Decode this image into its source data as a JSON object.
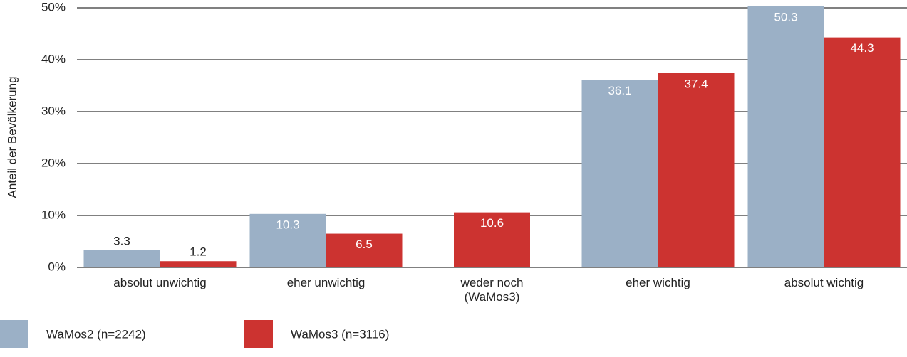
{
  "chart_data": {
    "type": "bar",
    "y_label": "Anteil der Bevölkerung",
    "categories": [
      "absolut unwichtig",
      "eher unwichtig",
      "weder noch\n(WaMos3)",
      "eher wichtig",
      "absolut wichtig"
    ],
    "series": [
      {
        "name": "WaMos2 (n=2242)",
        "color": "#9bb0c6",
        "values": [
          3.3,
          10.3,
          null,
          36.1,
          50.3
        ]
      },
      {
        "name": "WaMos3 (n=3116)",
        "color": "#cc3330",
        "values": [
          1.2,
          6.5,
          10.6,
          37.4,
          44.3
        ]
      }
    ],
    "ylim": [
      0,
      50
    ],
    "yticks": [
      {
        "value": 0,
        "label": "0%"
      },
      {
        "value": 10,
        "label": "10%"
      },
      {
        "value": 20,
        "label": "20%"
      },
      {
        "value": 30,
        "label": "30%"
      },
      {
        "value": 40,
        "label": "40%"
      },
      {
        "value": 50,
        "label": "50%"
      }
    ],
    "grid": true,
    "legend": "bottom"
  }
}
